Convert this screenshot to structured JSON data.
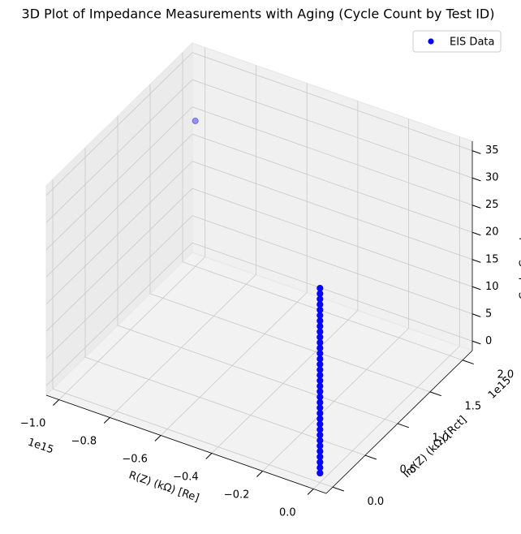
{
  "chart_data": {
    "type": "scatter3d",
    "title": "3D Plot of Impedance Measurements with Aging (Cycle Count by Test ID)",
    "x_label": "R(Z) (kΩ) [Re]",
    "y_label": "Im(Z) (kΩ) [Rct]",
    "z_label": "Cycle Count",
    "x_offset_label": "1e15",
    "y_offset_label": "1e15",
    "xlim": [
      -1050000000000000.0,
      50000000000000.0
    ],
    "ylim": [
      -100000000000000.0,
      2150000000000000.0
    ],
    "zlim": [
      -1.75,
      36.75
    ],
    "xticks": [
      {
        "value": -1000000000000000.0,
        "label": "−1.0"
      },
      {
        "value": -800000000000000.0,
        "label": "−0.8"
      },
      {
        "value": -600000000000000.0,
        "label": "−0.6"
      },
      {
        "value": -400000000000000.0,
        "label": "−0.4"
      },
      {
        "value": -200000000000000.0,
        "label": "−0.2"
      },
      {
        "value": 0,
        "label": "0.0"
      }
    ],
    "yticks": [
      {
        "value": 0,
        "label": "0.0"
      },
      {
        "value": 500000000000000.0,
        "label": "0.5"
      },
      {
        "value": 1000000000000000.0,
        "label": "1.0"
      },
      {
        "value": 1500000000000000.0,
        "label": "1.5"
      },
      {
        "value": 2000000000000000.0,
        "label": "2.0"
      }
    ],
    "zticks": [
      0,
      5,
      10,
      15,
      20,
      25,
      30,
      35
    ],
    "grid": true,
    "legend": "upper right",
    "series": [
      {
        "name": "EIS Data",
        "color": "#0000ff",
        "x": [
          0,
          0,
          0,
          0,
          0,
          0,
          0,
          0,
          0,
          0,
          0,
          0,
          0,
          0,
          0,
          0,
          0,
          0,
          0,
          0,
          0,
          0,
          0,
          0,
          0,
          0,
          0,
          0,
          0,
          0,
          0,
          0,
          0,
          0,
          0,
          -1000000000000000.0
        ],
        "y": [
          0,
          0,
          0,
          0,
          0,
          0,
          0,
          0,
          0,
          0,
          0,
          0,
          0,
          0,
          0,
          0,
          0,
          0,
          0,
          0,
          0,
          0,
          0,
          0,
          0,
          0,
          0,
          0,
          0,
          0,
          0,
          0,
          0,
          0,
          0,
          2000000000000000.0
        ],
        "z": [
          0,
          1,
          2,
          3,
          4,
          5,
          6,
          7,
          8,
          9,
          10,
          11,
          12,
          13,
          14,
          15,
          16,
          17,
          18,
          19,
          20,
          21,
          22,
          23,
          24,
          25,
          26,
          27,
          28,
          29,
          30,
          31,
          32,
          33,
          34,
          25
        ]
      }
    ]
  }
}
